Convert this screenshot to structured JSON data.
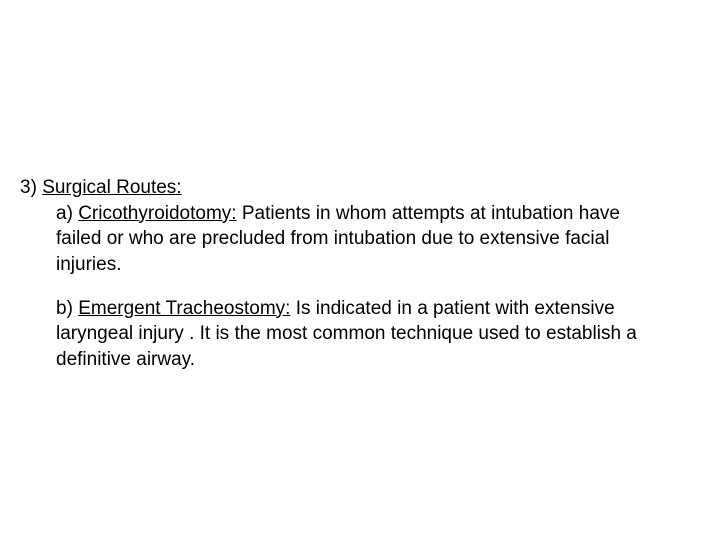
{
  "slide": {
    "background_color": "#ffffff",
    "text_color": "#000000",
    "font_family": "Arial, Helvetica, sans-serif",
    "font_size_pt": 19
  },
  "section": {
    "number_label": "3)",
    "heading": "Surgical Routes:",
    "item_a": {
      "label": "a)",
      "title": "Cricothyroidotomy:",
      "body": "  Patients in whom attempts at intubation have failed or who are precluded from intubation due to extensive facial injuries."
    },
    "item_b": {
      "label": "b)",
      "title": "Emergent Tracheostomy:",
      "body": "  Is indicated in a patient with extensive laryngeal injury .  It is the most common technique used to establish a definitive airway."
    }
  }
}
